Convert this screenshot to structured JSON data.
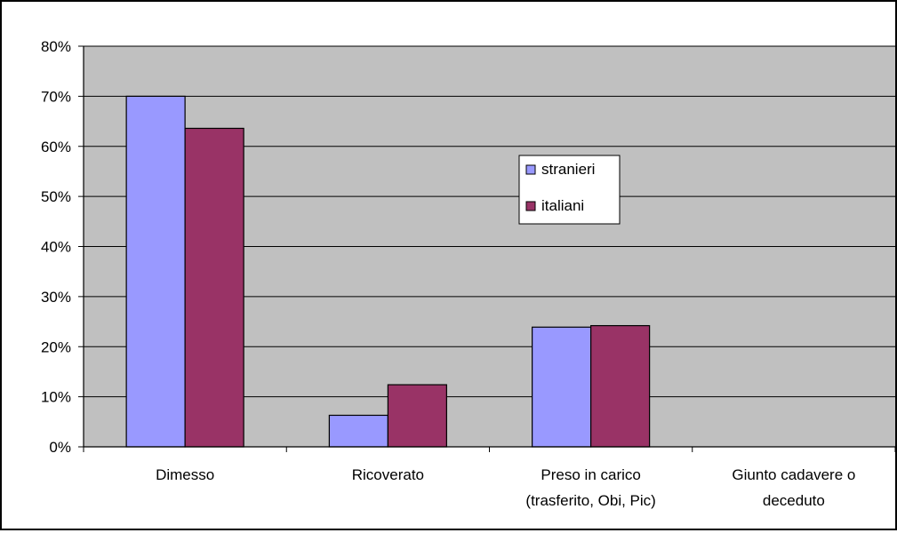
{
  "chart_data": {
    "type": "bar",
    "categories": [
      [
        "Dimesso"
      ],
      [
        "Ricoverato"
      ],
      [
        "Preso in carico",
        "(trasferito, Obi, Pic)"
      ],
      [
        "Giunto cadavere o",
        "deceduto"
      ]
    ],
    "series": [
      {
        "name": "stranieri",
        "values": [
          70.0,
          6.3,
          23.9,
          0
        ],
        "color": "#9999FF"
      },
      {
        "name": "italiani",
        "values": [
          63.6,
          12.4,
          24.2,
          0
        ],
        "color": "#993366"
      }
    ],
    "y_ticks": [
      "0%",
      "10%",
      "20%",
      "30%",
      "40%",
      "50%",
      "60%",
      "70%",
      "80%"
    ],
    "ylim": [
      0,
      80
    ],
    "y_unit": "%",
    "grid": true,
    "plot_background": "#C0C0C0",
    "legend_position": "center-right"
  }
}
